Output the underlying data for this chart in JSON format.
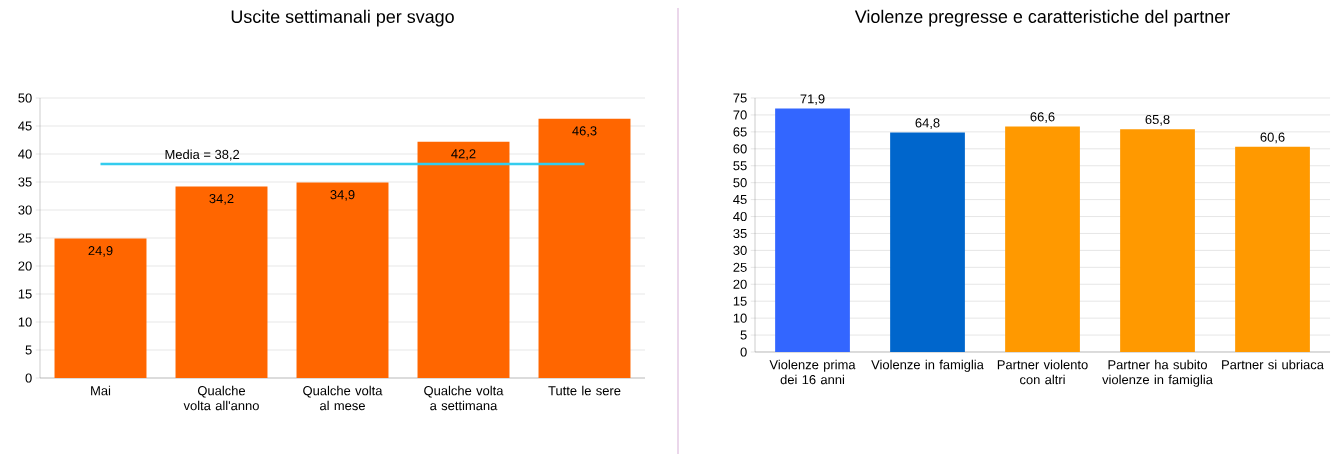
{
  "chart_data": [
    {
      "type": "bar",
      "title": "Uscite settimanali per svago",
      "categories": [
        "Mai",
        "Qualche volta all'anno",
        "Qualche volta al mese",
        "Qualche volta a settimana",
        "Tutte le sere"
      ],
      "values": [
        24.9,
        34.2,
        34.9,
        42.2,
        46.3
      ],
      "value_labels": [
        "24,9",
        "34,2",
        "34,9",
        "42,2",
        "46,3"
      ],
      "color": "#ff6600",
      "ylim": [
        0,
        50
      ],
      "yticks": [
        0,
        5,
        10,
        15,
        20,
        25,
        30,
        35,
        40,
        45,
        50
      ],
      "grid": "y",
      "ref_lines": [
        {
          "axis": "y",
          "value": 38.2,
          "label": "Media = 38,2",
          "color": "#33ccee"
        }
      ]
    },
    {
      "type": "bar",
      "title": "Violenze pregresse e caratteristiche del partner",
      "categories": [
        "Violenze prima dei 16 anni",
        "Violenze in famiglia",
        "Partner violento con altri",
        "Partner ha subito violenze in famiglia",
        "Partner si ubriaca"
      ],
      "values": [
        71.9,
        64.8,
        66.6,
        65.8,
        60.6
      ],
      "value_labels": [
        "71,9",
        "64,8",
        "66,6",
        "65,8",
        "60,6"
      ],
      "colors": [
        "#3366ff",
        "#0066cc",
        "#ff9900",
        "#ff9900",
        "#ff9900"
      ],
      "ylim": [
        0,
        75
      ],
      "yticks": [
        0,
        5,
        10,
        15,
        20,
        25,
        30,
        35,
        40,
        45,
        50,
        55,
        60,
        65,
        70,
        75
      ],
      "grid": "y"
    }
  ]
}
